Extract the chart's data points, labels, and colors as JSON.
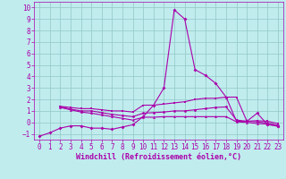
{
  "background_color": "#c0ecee",
  "line_color": "#aa00aa",
  "grid_color": "#99cccc",
  "xlabel": "Windchill (Refroidissement éolien,°C)",
  "xlabel_color": "#aa00aa",
  "xlim": [
    -0.5,
    23.5
  ],
  "ylim": [
    -1.5,
    10.5
  ],
  "yticks": [
    -1,
    0,
    1,
    2,
    3,
    4,
    5,
    6,
    7,
    8,
    9,
    10
  ],
  "xticks": [
    0,
    1,
    2,
    3,
    4,
    5,
    6,
    7,
    8,
    9,
    10,
    11,
    12,
    13,
    14,
    15,
    16,
    17,
    18,
    19,
    20,
    21,
    22,
    23
  ],
  "series": [
    {
      "x": [
        0,
        1,
        2,
        3,
        4,
        5,
        6,
        7,
        8,
        9,
        10,
        11,
        12,
        13,
        14,
        15,
        16,
        17,
        18,
        19,
        20,
        21,
        22,
        23
      ],
      "y": [
        -1.2,
        -0.9,
        -0.5,
        -0.3,
        -0.3,
        -0.5,
        -0.5,
        -0.6,
        -0.4,
        -0.2,
        0.5,
        1.5,
        3.0,
        9.8,
        9.0,
        4.6,
        4.1,
        3.4,
        2.2,
        0.1,
        0.1,
        0.8,
        -0.2,
        -0.3
      ]
    },
    {
      "x": [
        2,
        3,
        4,
        5,
        6,
        7,
        8,
        9,
        10,
        11,
        12,
        13,
        14,
        15,
        16,
        17,
        18,
        19,
        20,
        21,
        22,
        23
      ],
      "y": [
        1.4,
        1.3,
        1.2,
        1.2,
        1.1,
        1.0,
        1.0,
        0.9,
        1.5,
        1.5,
        1.6,
        1.7,
        1.8,
        2.0,
        2.1,
        2.1,
        2.2,
        2.2,
        0.1,
        0.15,
        0.1,
        -0.1
      ]
    },
    {
      "x": [
        2,
        3,
        4,
        5,
        6,
        7,
        8,
        9,
        10,
        11,
        12,
        13,
        14,
        15,
        16,
        17,
        18,
        19,
        20,
        21,
        22,
        23
      ],
      "y": [
        1.35,
        1.15,
        1.0,
        1.0,
        0.85,
        0.7,
        0.6,
        0.5,
        0.8,
        0.85,
        0.9,
        1.0,
        1.0,
        1.1,
        1.2,
        1.3,
        1.35,
        0.2,
        0.1,
        0.05,
        -0.05,
        -0.25
      ]
    },
    {
      "x": [
        2,
        3,
        4,
        5,
        6,
        7,
        8,
        9,
        10,
        11,
        12,
        13,
        14,
        15,
        16,
        17,
        18,
        19,
        20,
        21,
        22,
        23
      ],
      "y": [
        1.3,
        1.1,
        0.9,
        0.8,
        0.65,
        0.5,
        0.35,
        0.2,
        0.45,
        0.45,
        0.5,
        0.5,
        0.5,
        0.5,
        0.5,
        0.5,
        0.5,
        0.05,
        0.0,
        -0.1,
        -0.15,
        -0.35
      ]
    }
  ]
}
